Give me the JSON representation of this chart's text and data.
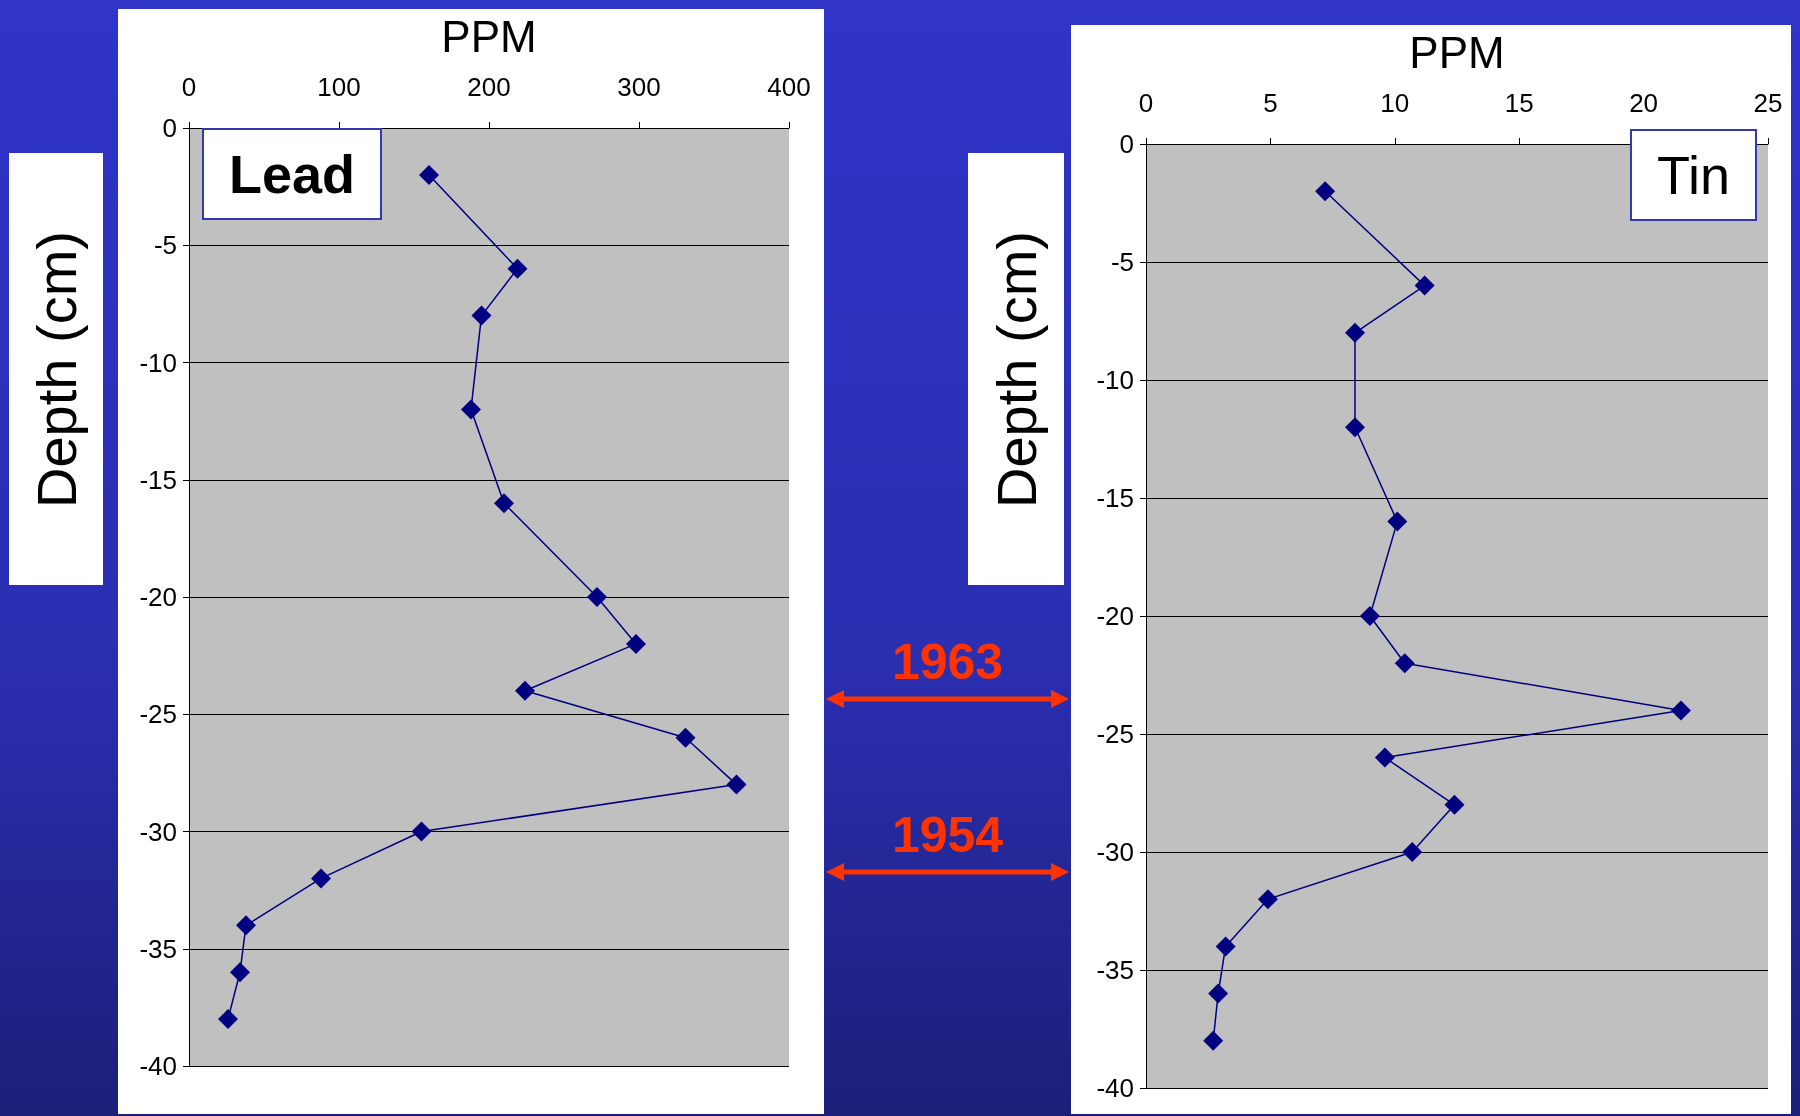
{
  "chart_data": [
    {
      "type": "line",
      "title": "Lead",
      "xlabel": "PPM",
      "ylabel": "Depth (cm)",
      "x": [
        160,
        219,
        195,
        188,
        210,
        272,
        298,
        224,
        331,
        365,
        155,
        88,
        38,
        34,
        26
      ],
      "values": [
        -2,
        -6,
        -8,
        -12,
        -16,
        -20,
        -22,
        -24,
        -26,
        -28,
        -30,
        -32,
        -34,
        -36,
        -38
      ],
      "color": "#000080",
      "marker": "diamond",
      "line_style": "solid",
      "grid": "y",
      "xlim": [
        0,
        400
      ],
      "xticks": [
        0,
        100,
        200,
        300,
        400
      ],
      "ylim": [
        -40,
        0
      ],
      "yticks": [
        -40,
        -35,
        -30,
        -25,
        -20,
        -15,
        -10,
        -5,
        0
      ]
    },
    {
      "type": "line",
      "title": "Tin",
      "xlabel": "PPM",
      "ylabel": "Depth (cm)",
      "x": [
        7.2,
        11.2,
        8.4,
        8.4,
        10.1,
        9.0,
        10.4,
        21.5,
        9.6,
        12.4,
        10.7,
        4.9,
        3.2,
        2.9,
        2.7
      ],
      "values": [
        -2,
        -6,
        -8,
        -12,
        -16,
        -20,
        -22,
        -24,
        -26,
        -28,
        -30,
        -32,
        -34,
        -36,
        -38
      ],
      "color": "#000080",
      "marker": "diamond",
      "line_style": "solid",
      "grid": "y",
      "xlim": [
        0,
        25
      ],
      "xticks": [
        0,
        5,
        10,
        15,
        20,
        25
      ],
      "ylim": [
        -40,
        0
      ],
      "yticks": [
        -40,
        -35,
        -30,
        -25,
        -20,
        -15,
        -10,
        -5,
        0
      ],
      "annotations": [
        "1963",
        "1954"
      ]
    }
  ]
}
